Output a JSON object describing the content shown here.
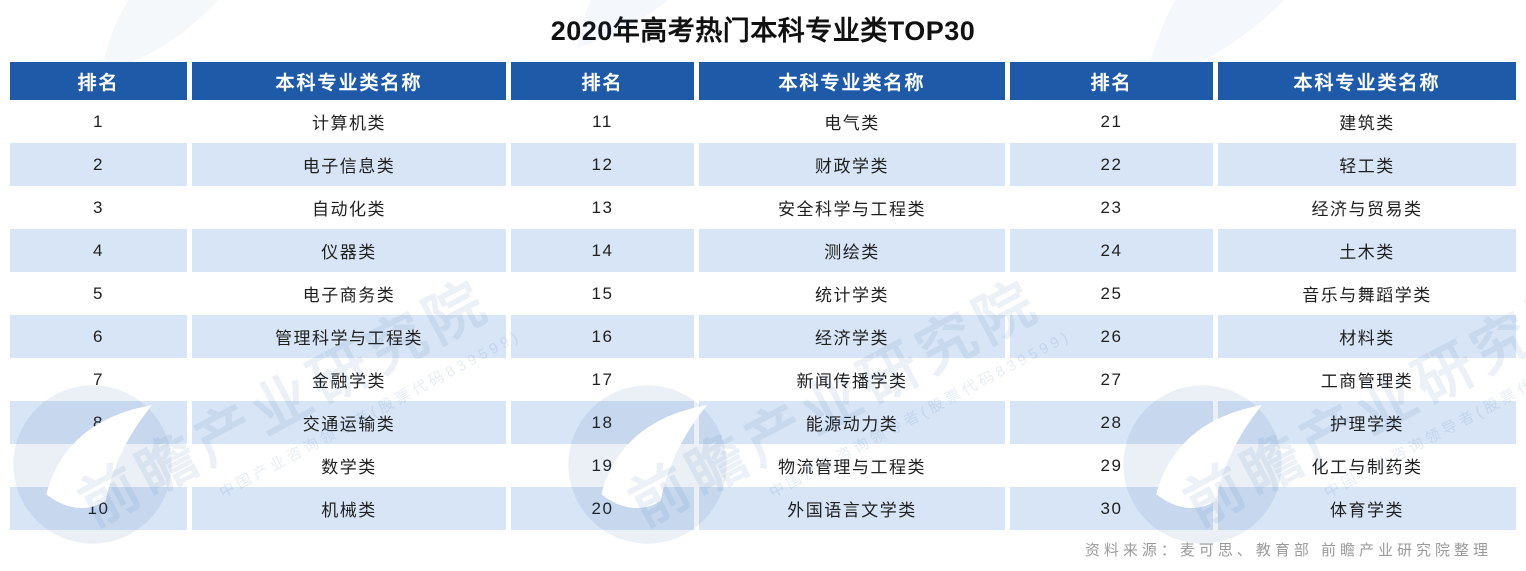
{
  "page_title": "2020年高考热门本科专业类TOP30",
  "chart_data": {
    "type": "table",
    "title": "2020年高考热门本科专业类TOP30",
    "columns": [
      "排名",
      "本科专业类名称",
      "排名",
      "本科专业类名称",
      "排名",
      "本科专业类名称"
    ],
    "rows": [
      [
        "1",
        "计算机类",
        "11",
        "电气类",
        "21",
        "建筑类"
      ],
      [
        "2",
        "电子信息类",
        "12",
        "财政学类",
        "22",
        "轻工类"
      ],
      [
        "3",
        "自动化类",
        "13",
        "安全科学与工程类",
        "23",
        "经济与贸易类"
      ],
      [
        "4",
        "仪器类",
        "14",
        "测绘类",
        "24",
        "土木类"
      ],
      [
        "5",
        "电子商务类",
        "15",
        "统计学类",
        "25",
        "音乐与舞蹈学类"
      ],
      [
        "6",
        "管理科学与工程类",
        "16",
        "经济学类",
        "26",
        "材料类"
      ],
      [
        "7",
        "金融学类",
        "17",
        "新闻传播学类",
        "27",
        "工商管理类"
      ],
      [
        "8",
        "交通运输类",
        "18",
        "能源动力类",
        "28",
        "护理学类"
      ],
      [
        "9",
        "数学类",
        "19",
        "物流管理与工程类",
        "29",
        "化工与制药类"
      ],
      [
        "10",
        "机械类",
        "20",
        "外国语言文学类",
        "30",
        "体育学类"
      ]
    ]
  },
  "footer": {
    "source": "资料来源：麦可思、教育部 前瞻产业研究院整理"
  },
  "watermark": {
    "brand": "前瞻产业研究院",
    "tagline": "中国产业咨询领导者(股票代码839599)"
  },
  "colors": {
    "header_bg": "#1f5aa8",
    "header_text": "#ffffff",
    "row_alt_bg": "#d8e5f6",
    "row_bg": "#ffffff",
    "cell_text": "#1f1f1f",
    "title_text": "#111111",
    "source_text": "#9b9b9b",
    "watermark": "#1f5aa8"
  }
}
